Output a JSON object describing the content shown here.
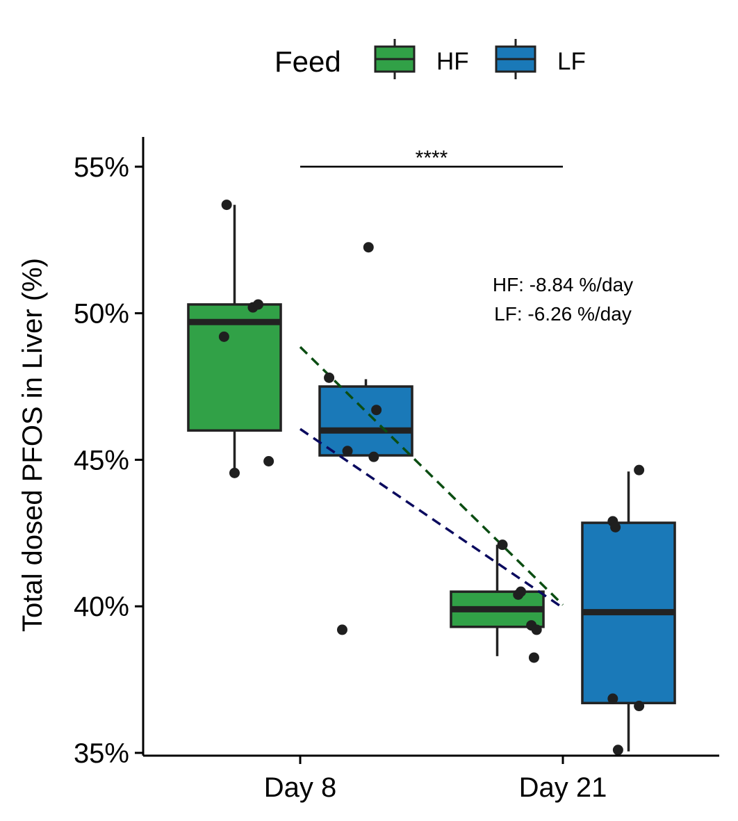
{
  "chart_data": {
    "type": "box",
    "title": "",
    "xlabel": "",
    "ylabel": "Total dosed PFOS in Liver (%)",
    "categories": [
      "Day 8",
      "Day 21"
    ],
    "y_ticks": [
      {
        "value": 35,
        "label": "35%"
      },
      {
        "value": 40,
        "label": "40%"
      },
      {
        "value": 45,
        "label": "45%"
      },
      {
        "value": 50,
        "label": "50%"
      },
      {
        "value": 55,
        "label": "55%"
      }
    ],
    "ylim": [
      34.95,
      56
    ],
    "grid": false,
    "legend": {
      "title": "Feed",
      "placement": "top",
      "entries": [
        {
          "name": "HF",
          "color": "#31a147"
        },
        {
          "name": "LF",
          "color": "#1a79b8"
        }
      ]
    },
    "series": [
      {
        "name": "HF",
        "color": "#31a147",
        "trend_color": "#0b4d12",
        "boxes": [
          {
            "category": "Day 8",
            "whisker_low": 44.6,
            "q1": 46.0,
            "median": 49.7,
            "q3": 50.3,
            "whisker_high": 53.7
          },
          {
            "category": "Day 21",
            "whisker_low": 38.3,
            "q1": 39.3,
            "median": 39.9,
            "q3": 40.5,
            "whisker_high": 42.1
          }
        ],
        "points": [
          {
            "category": "Day 8",
            "jitter": -0.28,
            "y": 53.7
          },
          {
            "category": "Day 8",
            "jitter": -0.29,
            "y": 49.2
          },
          {
            "category": "Day 8",
            "jitter": -0.18,
            "y": 50.2
          },
          {
            "category": "Day 8",
            "jitter": -0.16,
            "y": 50.3
          },
          {
            "category": "Day 8",
            "jitter": -0.25,
            "y": 44.55
          },
          {
            "category": "Day 8",
            "jitter": -0.12,
            "y": 44.95
          },
          {
            "category": "Day 21",
            "jitter": -0.23,
            "y": 42.1
          },
          {
            "category": "Day 21",
            "jitter": -0.17,
            "y": 40.4
          },
          {
            "category": "Day 21",
            "jitter": -0.16,
            "y": 40.5
          },
          {
            "category": "Day 21",
            "jitter": -0.12,
            "y": 39.35
          },
          {
            "category": "Day 21",
            "jitter": -0.1,
            "y": 39.2
          },
          {
            "category": "Day 21",
            "jitter": -0.11,
            "y": 38.25
          }
        ],
        "trend": {
          "from": 48.85,
          "to": 40.05
        }
      },
      {
        "name": "LF",
        "color": "#1a79b8",
        "trend_color": "#0a0a5e",
        "boxes": [
          {
            "category": "Day 8",
            "whisker_low": 45.15,
            "q1": 45.15,
            "median": 46.0,
            "q3": 47.5,
            "whisker_high": 47.75
          },
          {
            "category": "Day 21",
            "whisker_low": 35.05,
            "q1": 36.7,
            "median": 39.8,
            "q3": 42.85,
            "whisker_high": 44.6
          }
        ],
        "points": [
          {
            "category": "Day 8",
            "jitter": 0.26,
            "y": 52.25
          },
          {
            "category": "Day 8",
            "jitter": 0.11,
            "y": 47.8
          },
          {
            "category": "Day 8",
            "jitter": 0.29,
            "y": 46.7
          },
          {
            "category": "Day 8",
            "jitter": 0.18,
            "y": 45.3
          },
          {
            "category": "Day 8",
            "jitter": 0.28,
            "y": 45.1
          },
          {
            "category": "Day 8",
            "jitter": 0.16,
            "y": 39.2
          },
          {
            "category": "Day 21",
            "jitter": 0.29,
            "y": 44.65
          },
          {
            "category": "Day 21",
            "jitter": 0.19,
            "y": 42.9
          },
          {
            "category": "Day 21",
            "jitter": 0.2,
            "y": 42.7
          },
          {
            "category": "Day 21",
            "jitter": 0.19,
            "y": 36.85
          },
          {
            "category": "Day 21",
            "jitter": 0.29,
            "y": 36.6
          },
          {
            "category": "Day 21",
            "jitter": 0.21,
            "y": 35.1
          }
        ],
        "trend": {
          "from": 46.05,
          "to": 39.95
        }
      }
    ],
    "annotations": {
      "rates": [
        "HF: -8.84 %/day",
        "LF: -6.26 %/day"
      ],
      "significance": {
        "label": "****",
        "from": "Day 8",
        "to": "Day 21",
        "y": 55.0
      }
    }
  }
}
